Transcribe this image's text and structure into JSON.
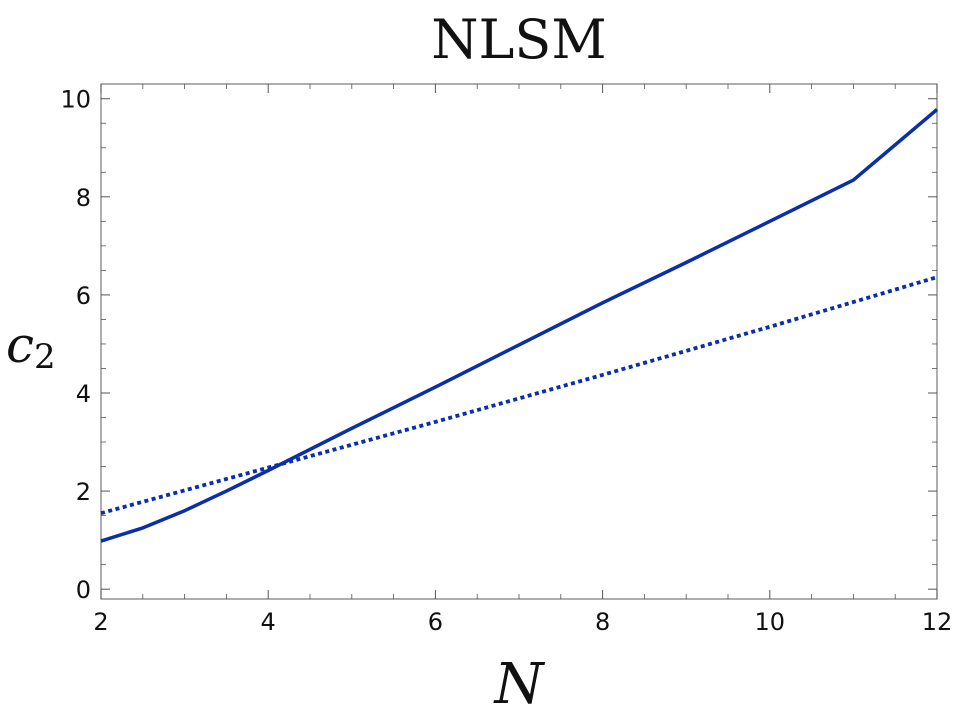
{
  "chart_data": {
    "type": "line",
    "title": "NLSM",
    "xlabel": "N",
    "ylabel_base": "c",
    "ylabel_sub": "2",
    "xlim": [
      2,
      12
    ],
    "ylim": [
      -0.2,
      10.3
    ],
    "x_ticks": [
      2,
      4,
      6,
      8,
      10,
      12
    ],
    "y_ticks": [
      0,
      2,
      4,
      6,
      8,
      10
    ],
    "grid": false,
    "frame": true,
    "series": [
      {
        "style": "solid",
        "color": "#0a2fa8",
        "x": [
          2,
          2.5,
          3,
          3.5,
          4,
          5,
          6,
          7,
          8,
          9,
          10,
          11,
          12
        ],
        "y": [
          0.98,
          1.25,
          1.6,
          2.0,
          2.42,
          3.28,
          4.12,
          4.98,
          5.84,
          6.66,
          7.5,
          8.34,
          9.78
        ]
      },
      {
        "style": "dotted",
        "color": "#0a2fa8",
        "x": [
          2,
          4,
          6,
          8,
          10,
          12
        ],
        "y": [
          1.55,
          2.48,
          3.41,
          4.37,
          5.35,
          6.36
        ]
      }
    ]
  }
}
